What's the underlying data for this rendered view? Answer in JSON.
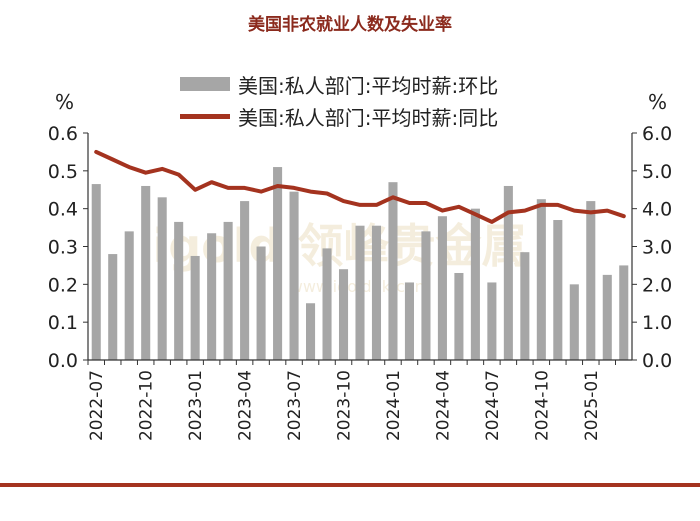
{
  "chart_data": {
    "type": "bar+line",
    "title": "美国非农就业人数及失业率",
    "left_unit": "%",
    "right_unit": "%",
    "left_ylim": [
      0,
      0.6
    ],
    "right_ylim": [
      0,
      6.0
    ],
    "left_ticks": [
      "0.0",
      "0.1",
      "0.2",
      "0.3",
      "0.4",
      "0.5",
      "0.6"
    ],
    "right_ticks": [
      "0.0",
      "1.0",
      "2.0",
      "3.0",
      "4.0",
      "5.0",
      "6.0"
    ],
    "x": [
      "2022-07",
      "2022-08",
      "2022-09",
      "2022-10",
      "2022-11",
      "2022-12",
      "2023-01",
      "2023-02",
      "2023-03",
      "2023-04",
      "2023-05",
      "2023-06",
      "2023-07",
      "2023-08",
      "2023-09",
      "2023-10",
      "2023-11",
      "2023-12",
      "2024-01",
      "2024-02",
      "2024-03",
      "2024-04",
      "2024-05",
      "2024-06",
      "2024-07",
      "2024-08",
      "2024-09",
      "2024-10",
      "2024-11",
      "2024-12",
      "2025-01",
      "2025-02",
      "2025-03"
    ],
    "x_tick_labels": [
      "2022-07",
      "2022-10",
      "2023-01",
      "2023-04",
      "2023-07",
      "2023-10",
      "2024-01",
      "2024-04",
      "2024-07",
      "2024-10",
      "2025-01"
    ],
    "legend_position": "top",
    "series": [
      {
        "name": "美国:私人部门:平均时薪:环比",
        "type": "bar",
        "axis": "left",
        "color": "#A6A6A6",
        "values": [
          0.465,
          0.28,
          0.34,
          0.46,
          0.43,
          0.365,
          0.275,
          0.335,
          0.365,
          0.42,
          0.3,
          0.51,
          0.445,
          0.15,
          0.295,
          0.24,
          0.355,
          0.355,
          0.47,
          0.205,
          0.34,
          0.38,
          0.23,
          0.4,
          0.205,
          0.46,
          0.285,
          0.425,
          0.37,
          0.2,
          0.42,
          0.225,
          0.25
        ]
      },
      {
        "name": "美国:私人部门:平均时薪:同比",
        "type": "line",
        "axis": "right",
        "color": "#A4331F",
        "values": [
          5.5,
          5.3,
          5.1,
          4.95,
          5.05,
          4.9,
          4.5,
          4.7,
          4.55,
          4.55,
          4.45,
          4.6,
          4.55,
          4.45,
          4.4,
          4.2,
          4.1,
          4.1,
          4.3,
          4.15,
          4.15,
          3.95,
          4.05,
          3.85,
          3.65,
          3.9,
          3.95,
          4.1,
          4.1,
          3.95,
          3.9,
          3.95,
          3.8
        ]
      }
    ]
  },
  "watermark": "igold 领峰贵金属 www.igoldhk.com"
}
